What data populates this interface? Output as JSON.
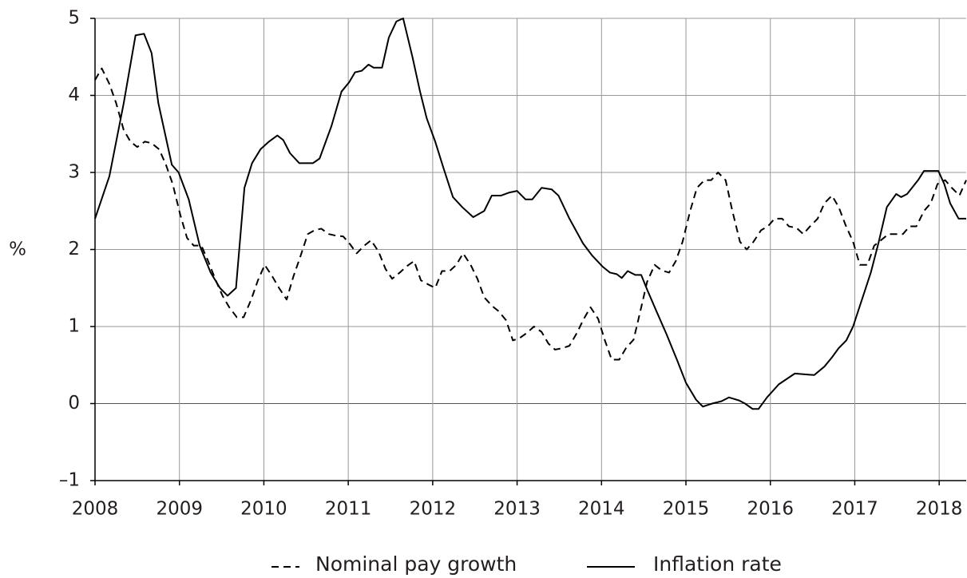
{
  "chart_data": {
    "type": "line",
    "ylabel": "%",
    "xlim": [
      2008,
      2018.32
    ],
    "xticks": [
      2008,
      2009,
      2010,
      2011,
      2012,
      2013,
      2014,
      2015,
      2016,
      2017,
      2018
    ],
    "ylim": [
      -1,
      5
    ],
    "yticks": [
      {
        "value": -1,
        "label": "–1"
      },
      0,
      1,
      2,
      3,
      4,
      5
    ],
    "grid": true,
    "series": [
      {
        "name": "Nominal pay growth",
        "color": "#000000",
        "linestyle": "dashed",
        "x": [
          2008,
          2008.08,
          2008.17,
          2008.25,
          2008.34,
          2008.42,
          2008.5,
          2008.59,
          2008.67,
          2008.76,
          2008.84,
          2008.92,
          2009.01,
          2009.09,
          2009.17,
          2009.26,
          2009.34,
          2009.43,
          2009.51,
          2009.59,
          2009.68,
          2009.76,
          2009.85,
          2009.93,
          2010.01,
          2010.1,
          2010.18,
          2010.27,
          2010.35,
          2010.43,
          2010.52,
          2010.6,
          2010.68,
          2010.77,
          2010.85,
          2010.94,
          2011.02,
          2011.1,
          2011.19,
          2011.27,
          2011.36,
          2011.44,
          2011.52,
          2011.61,
          2011.69,
          2011.78,
          2011.86,
          2011.94,
          2012.03,
          2012.11,
          2012.2,
          2012.28,
          2012.36,
          2012.45,
          2012.53,
          2012.61,
          2012.7,
          2012.78,
          2012.87,
          2012.95,
          2013.03,
          2013.12,
          2013.2,
          2013.29,
          2013.37,
          2013.45,
          2013.54,
          2013.62,
          2013.71,
          2013.79,
          2013.87,
          2013.96,
          2014.04,
          2014.12,
          2014.21,
          2014.29,
          2014.38,
          2014.46,
          2014.54,
          2014.63,
          2014.71,
          2014.8,
          2014.88,
          2014.96,
          2015.05,
          2015.13,
          2015.22,
          2015.3,
          2015.38,
          2015.47,
          2015.55,
          2015.64,
          2015.72,
          2015.8,
          2015.89,
          2015.97,
          2016.05,
          2016.14,
          2016.22,
          2016.31,
          2016.39,
          2016.47,
          2016.56,
          2016.64,
          2016.73,
          2016.81,
          2016.89,
          2016.98,
          2017.06,
          2017.15,
          2017.23,
          2017.31,
          2017.4,
          2017.48,
          2017.57,
          2017.65,
          2017.73,
          2017.82,
          2017.9,
          2017.98,
          2018.07,
          2018.15,
          2018.24,
          2018.32
        ],
        "values": [
          4.2,
          4.35,
          4.15,
          3.9,
          3.55,
          3.4,
          3.33,
          3.4,
          3.38,
          3.3,
          3.1,
          2.85,
          2.45,
          2.15,
          2.05,
          2.05,
          1.85,
          1.6,
          1.4,
          1.25,
          1.12,
          1.12,
          1.35,
          1.6,
          1.8,
          1.65,
          1.5,
          1.35,
          1.65,
          1.9,
          2.2,
          2.25,
          2.27,
          2.2,
          2.18,
          2.17,
          2.07,
          1.95,
          2.05,
          2.12,
          1.97,
          1.75,
          1.62,
          1.7,
          1.78,
          1.85,
          1.6,
          1.55,
          1.5,
          1.72,
          1.72,
          1.8,
          1.95,
          1.8,
          1.62,
          1.38,
          1.27,
          1.2,
          1.08,
          0.82,
          0.85,
          0.92,
          1.0,
          0.93,
          0.78,
          0.7,
          0.72,
          0.75,
          0.92,
          1.1,
          1.25,
          1.1,
          0.82,
          0.57,
          0.57,
          0.72,
          0.83,
          1.2,
          1.58,
          1.8,
          1.73,
          1.7,
          1.85,
          2.1,
          2.5,
          2.8,
          2.9,
          2.9,
          3.0,
          2.9,
          2.5,
          2.1,
          2.0,
          2.1,
          2.25,
          2.3,
          2.4,
          2.4,
          2.3,
          2.28,
          2.2,
          2.3,
          2.4,
          2.6,
          2.7,
          2.55,
          2.32,
          2.1,
          1.8,
          1.8,
          2.05,
          2.12,
          2.2,
          2.2,
          2.2,
          2.3,
          2.3,
          2.5,
          2.6,
          2.85,
          2.9,
          2.8,
          2.7,
          2.9
        ]
      },
      {
        "name": "Inflation rate",
        "color": "#000000",
        "linestyle": "solid",
        "x": [
          2008,
          2008.17,
          2008.34,
          2008.48,
          2008.58,
          2008.67,
          2008.75,
          2008.83,
          2008.91,
          2008.99,
          2009.11,
          2009.24,
          2009.37,
          2009.48,
          2009.57,
          2009.67,
          2009.77,
          2009.86,
          2009.96,
          2010.06,
          2010.16,
          2010.23,
          2010.31,
          2010.42,
          2010.58,
          2010.66,
          2010.8,
          2010.92,
          2011.01,
          2011.08,
          2011.16,
          2011.24,
          2011.3,
          2011.4,
          2011.48,
          2011.57,
          2011.65,
          2011.76,
          2011.85,
          2011.93,
          2012.03,
          2012.13,
          2012.24,
          2012.35,
          2012.48,
          2012.61,
          2012.7,
          2012.81,
          2012.91,
          2013.0,
          2013.1,
          2013.18,
          2013.29,
          2013.41,
          2013.49,
          2013.62,
          2013.78,
          2013.89,
          2014.01,
          2014.1,
          2014.18,
          2014.24,
          2014.31,
          2014.4,
          2014.47,
          2014.54,
          2014.65,
          2014.77,
          2014.9,
          2015.0,
          2015.12,
          2015.2,
          2015.31,
          2015.42,
          2015.51,
          2015.63,
          2015.7,
          2015.79,
          2015.86,
          2015.96,
          2016.1,
          2016.29,
          2016.52,
          2016.64,
          2016.73,
          2016.81,
          2016.9,
          2016.98,
          2017.07,
          2017.19,
          2017.28,
          2017.38,
          2017.49,
          2017.55,
          2017.62,
          2017.75,
          2017.82,
          2017.99,
          2018.06,
          2018.13,
          2018.23,
          2018.32
        ],
        "values": [
          2.4,
          2.95,
          3.9,
          4.78,
          4.8,
          4.55,
          3.9,
          3.5,
          3.1,
          3.0,
          2.65,
          2.05,
          1.7,
          1.5,
          1.4,
          1.5,
          2.8,
          3.12,
          3.3,
          3.4,
          3.48,
          3.42,
          3.25,
          3.12,
          3.12,
          3.18,
          3.6,
          4.05,
          4.17,
          4.3,
          4.32,
          4.4,
          4.36,
          4.36,
          4.75,
          4.96,
          5.0,
          4.5,
          4.05,
          3.7,
          3.4,
          3.05,
          2.68,
          2.55,
          2.42,
          2.5,
          2.7,
          2.7,
          2.74,
          2.76,
          2.65,
          2.65,
          2.8,
          2.78,
          2.7,
          2.4,
          2.08,
          1.92,
          1.78,
          1.7,
          1.68,
          1.63,
          1.72,
          1.67,
          1.67,
          1.48,
          1.2,
          0.9,
          0.55,
          0.27,
          0.05,
          -0.04,
          0.0,
          0.03,
          0.08,
          0.04,
          0.0,
          -0.07,
          -0.07,
          0.08,
          0.25,
          0.39,
          0.37,
          0.48,
          0.6,
          0.72,
          0.82,
          1.0,
          1.3,
          1.7,
          2.08,
          2.55,
          2.72,
          2.68,
          2.72,
          2.9,
          3.02,
          3.02,
          2.85,
          2.6,
          2.4,
          2.4
        ]
      }
    ]
  }
}
